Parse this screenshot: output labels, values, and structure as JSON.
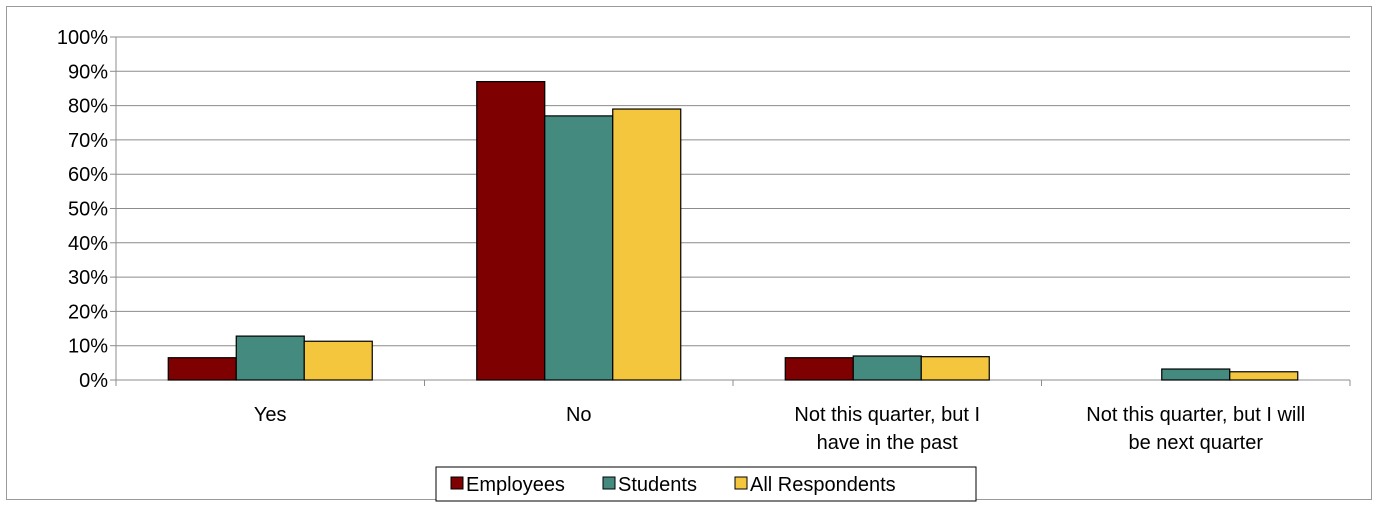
{
  "chart_data": {
    "type": "bar",
    "categories": [
      [
        "Yes"
      ],
      [
        "No"
      ],
      [
        "Not this quarter, but I",
        "have in the past"
      ],
      [
        "Not this quarter, but I will",
        "be next quarter"
      ]
    ],
    "series": [
      {
        "name": "Employees",
        "color": "#7f0000",
        "values": [
          6.5,
          87,
          6.5,
          0
        ]
      },
      {
        "name": "Students",
        "color": "#458a7f",
        "values": [
          12.8,
          77,
          7,
          3.2
        ]
      },
      {
        "name": "All Respondents",
        "color": "#f4c63d",
        "values": [
          11.3,
          79,
          6.8,
          2.4
        ]
      }
    ],
    "yticks": [
      "0%",
      "10%",
      "20%",
      "30%",
      "40%",
      "50%",
      "60%",
      "70%",
      "80%",
      "90%",
      "100%"
    ],
    "ylim": [
      0,
      100
    ],
    "grid": true,
    "legend_position": "bottom"
  }
}
